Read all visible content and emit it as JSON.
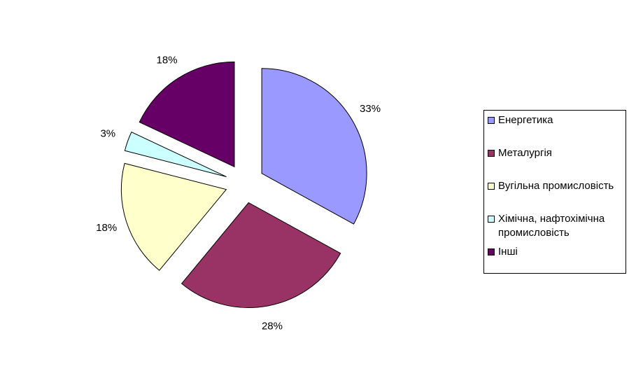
{
  "chart_data": {
    "type": "pie",
    "exploded": true,
    "slices": [
      {
        "label": "Енергетика",
        "value": 33,
        "value_label": "33%",
        "color": "#9999ff"
      },
      {
        "label": "Металургія",
        "value": 28,
        "value_label": "28%",
        "color": "#993366"
      },
      {
        "label": "Вугільна промисловість",
        "value": 18,
        "value_label": "18%",
        "color": "#ffffcc"
      },
      {
        "label": "Хімічна, нафтохімічна промисловість",
        "value": 3,
        "value_label": "3%",
        "color": "#ccffff"
      },
      {
        "label": "Інші",
        "value": 18,
        "value_label": "18%",
        "color": "#660066"
      }
    ],
    "legend": {
      "position": "right"
    }
  }
}
